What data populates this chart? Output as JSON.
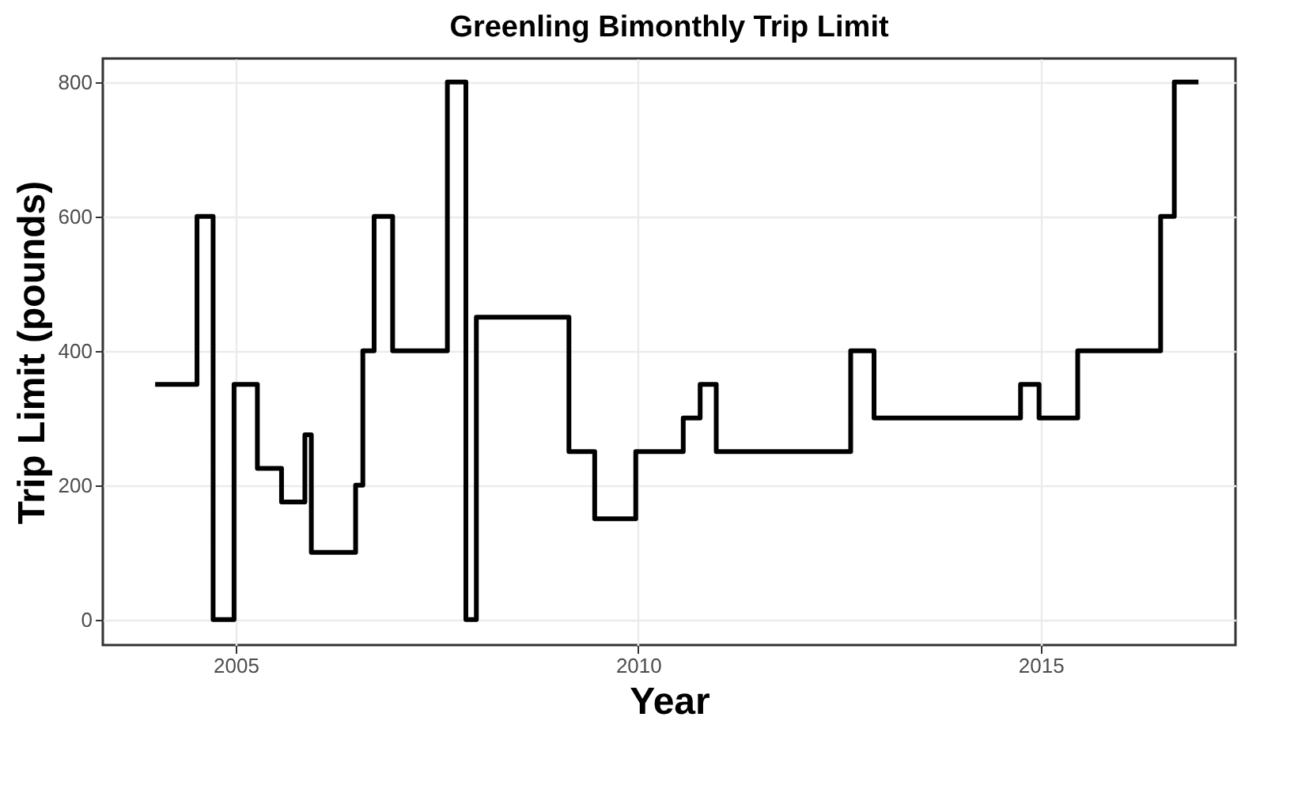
{
  "chart_data": {
    "type": "step",
    "title": "Greenling Bimonthly Trip Limit",
    "xlabel": "Year",
    "ylabel": "Trip Limit (pounds)",
    "x": [
      2004.0,
      2004.52,
      2004.72,
      2004.98,
      2005.27,
      2005.57,
      2005.86,
      2005.94,
      2006.49,
      2006.58,
      2006.72,
      2006.95,
      2007.63,
      2007.86,
      2007.99,
      2009.14,
      2009.46,
      2009.97,
      2010.56,
      2010.77,
      2010.97,
      2012.64,
      2012.93,
      2014.75,
      2014.98,
      2015.46,
      2016.49,
      2016.66,
      2016.96
    ],
    "series": [
      {
        "color": "#000000",
        "values": [
          350,
          600,
          0,
          350,
          225,
          175,
          275,
          100,
          200,
          400,
          600,
          400,
          800,
          0,
          450,
          250,
          150,
          250,
          300,
          350,
          250,
          400,
          300,
          350,
          300,
          400,
          600,
          800,
          800
        ]
      }
    ],
    "xlim": [
      2003.35,
      2017.42
    ],
    "xticks": [
      2005,
      2010,
      2015
    ],
    "ylim": [
      -38,
      835
    ],
    "yticks": [
      0,
      200,
      400,
      600,
      800
    ],
    "grid": true,
    "line_style": "solid"
  }
}
